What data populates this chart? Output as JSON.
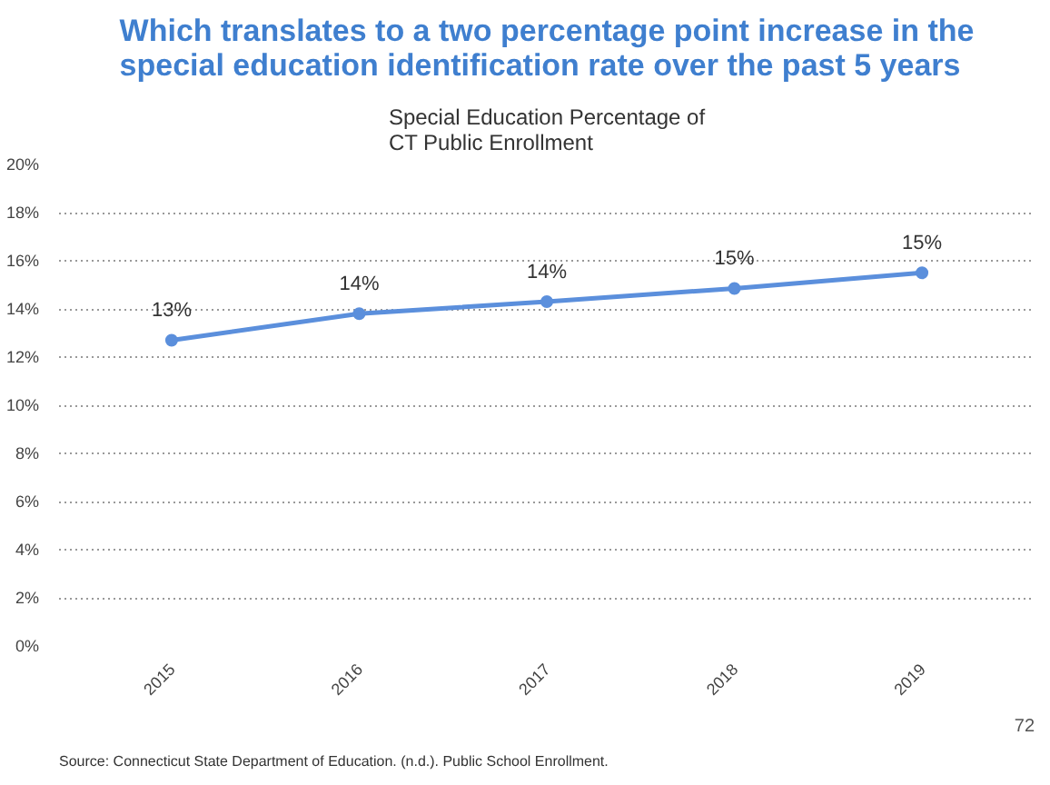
{
  "chart_data": {
    "type": "line",
    "title": "Which translates to a two percentage point increase in the\nspecial education identification rate over the past 5 years",
    "subtitle": "Special Education Percentage of\nCT Public Enrollment",
    "categories": [
      "2015",
      "2016",
      "2017",
      "2018",
      "2019"
    ],
    "series": [
      {
        "color": "#5b8fdc",
        "values": [
          12.7,
          13.8,
          14.3,
          14.85,
          15.5
        ],
        "value_labels": [
          "13%",
          "14%",
          "14%",
          "15%",
          "15%"
        ]
      }
    ],
    "ylim": [
      0,
      20
    ],
    "yticks": [
      {
        "value": 0,
        "label": "0%"
      },
      {
        "value": 2,
        "label": "2%"
      },
      {
        "value": 4,
        "label": "4%"
      },
      {
        "value": 6,
        "label": "6%"
      },
      {
        "value": 8,
        "label": "8%"
      },
      {
        "value": 10,
        "label": "10%"
      },
      {
        "value": 12,
        "label": "12%"
      },
      {
        "value": 14,
        "label": "14%"
      },
      {
        "value": 16,
        "label": "16%"
      },
      {
        "value": 18,
        "label": "18%"
      },
      {
        "value": 20,
        "label": "20%"
      }
    ],
    "grid": "y",
    "marker": "circle",
    "annotations": [
      "Source: Connecticut State Department of Education. (n.d.). Public School Enrollment.",
      "72"
    ]
  }
}
